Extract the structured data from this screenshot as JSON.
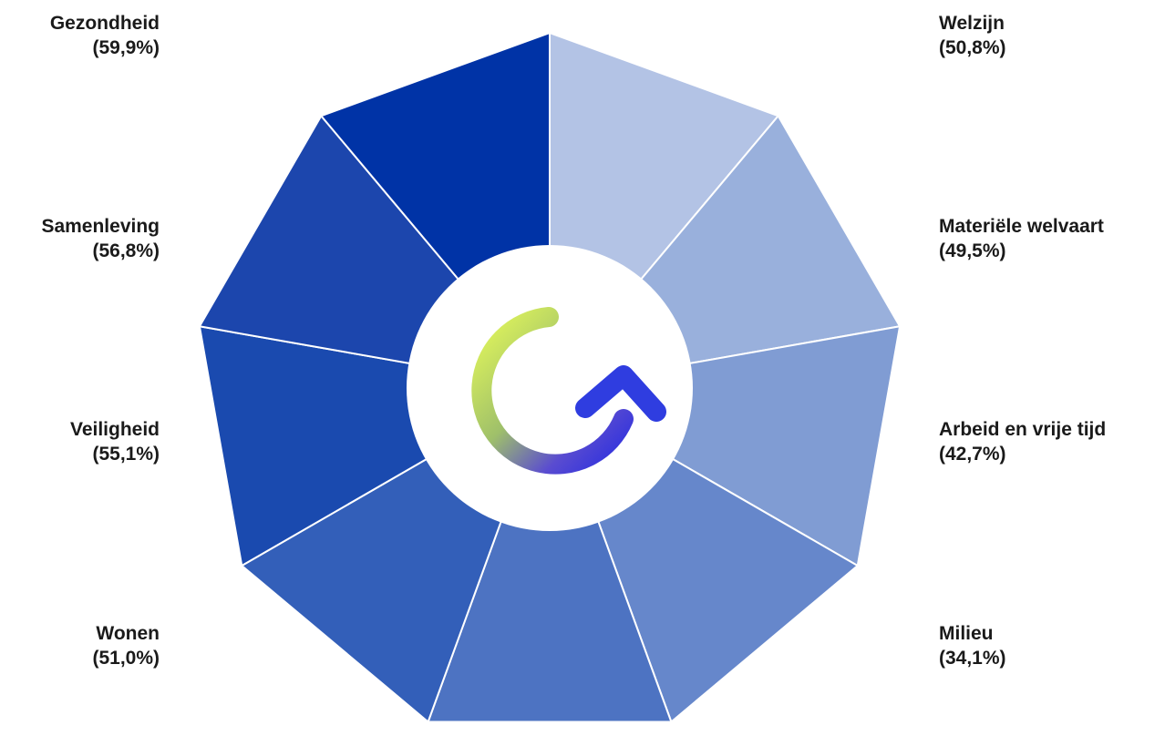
{
  "chart_data": {
    "type": "pie",
    "subtype": "donut",
    "segments": [
      {
        "name": "Welzijn",
        "value": 50.8,
        "value_label": "(50,8%)",
        "color": "#b3c3e5"
      },
      {
        "name": "Materiële welvaart",
        "value": 49.5,
        "value_label": "(49,5%)",
        "color": "#99b0dc"
      },
      {
        "name": "Arbeid en vrije tijd",
        "value": 42.7,
        "value_label": "(42,7%)",
        "color": "#809cd3"
      },
      {
        "name": "Milieu",
        "value": 34.1,
        "value_label": "(34,1%)",
        "color": "#6687cb"
      },
      {
        "name": "",
        "value": null,
        "value_label": "",
        "color": "#4d73c2"
      },
      {
        "name": "Wonen",
        "value": 51.0,
        "value_label": "(51,0%)",
        "color": "#335fb9"
      },
      {
        "name": "Veiligheid",
        "value": 55.1,
        "value_label": "(55,1%)",
        "color": "#1a4aaf"
      },
      {
        "name": "Samenleving",
        "value": 56.8,
        "value_label": "(56,8%)",
        "color": "#1c46ad"
      },
      {
        "name": "Gezondheid",
        "value": 59.9,
        "value_label": "(59,9%)",
        "color": "#0033a6"
      }
    ],
    "center_icon": "circular-arrow-logo-icon",
    "logo_colors": {
      "start": "#e4f85a",
      "end": "#2a2ee0"
    }
  }
}
